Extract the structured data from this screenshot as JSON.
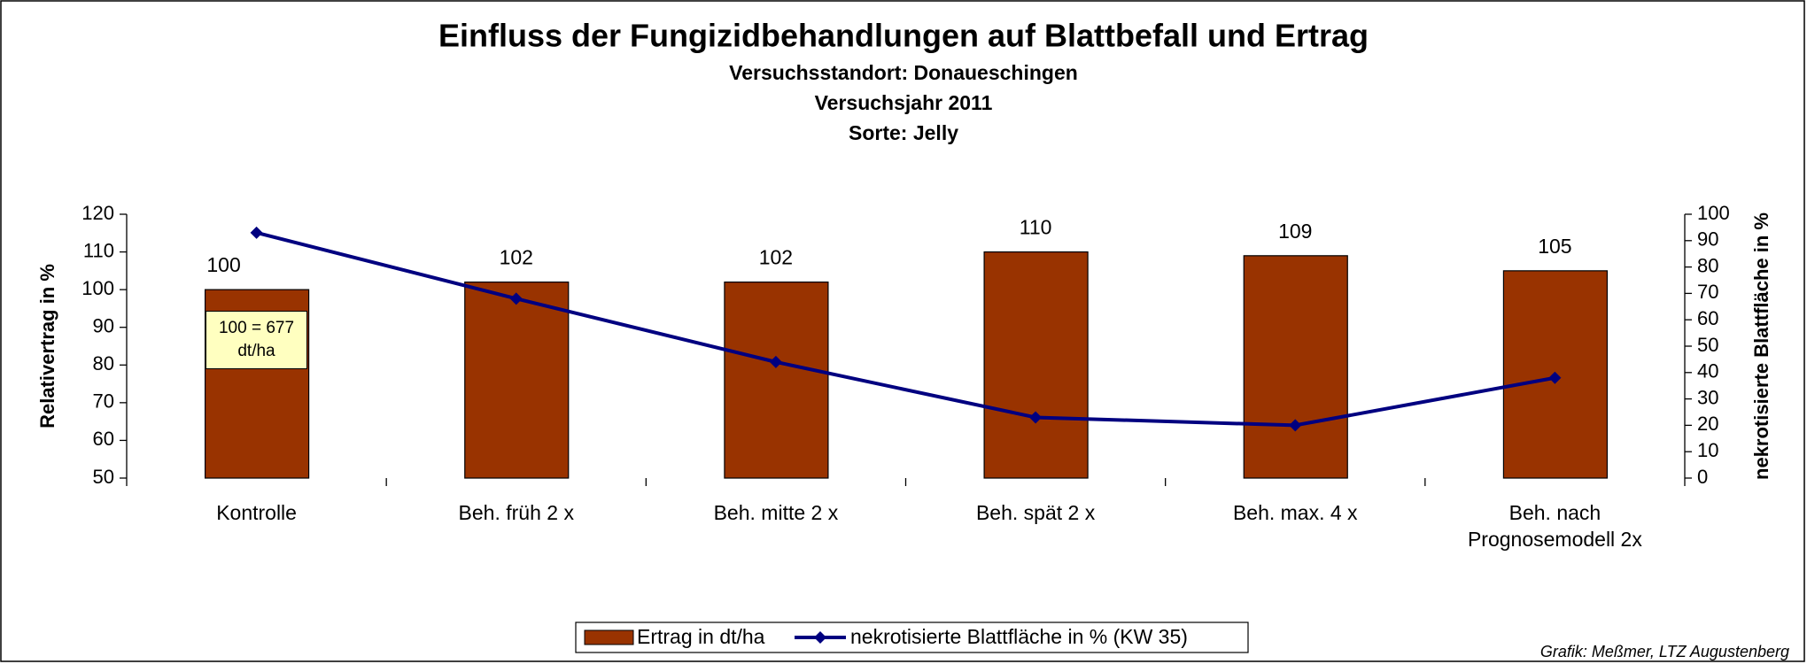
{
  "chart_data": {
    "type": "bar",
    "title": "Einfluss der Fungizidbehandlungen auf Blattbefall und Ertrag",
    "subtitle": [
      "Versuchsstandort: Donaueschingen",
      "Versuchsjahr 2011",
      "Sorte: Jelly"
    ],
    "categories": [
      "Kontrolle",
      "Beh. früh 2 x",
      "Beh. mitte 2 x",
      "Beh. spät  2 x",
      "Beh. max. 4 x",
      "Beh. nach Prognosemodell 2x"
    ],
    "series": [
      {
        "name": "Ertrag in dt/ha",
        "type": "bar",
        "color": "#993300",
        "values": [
          100,
          102,
          102,
          110,
          109,
          105
        ]
      },
      {
        "name": "nekrotisierte Blattfläche in % (KW 35)",
        "type": "line",
        "axis": "y2",
        "color": "#000080",
        "values": [
          93,
          68,
          44,
          23,
          20,
          38
        ]
      }
    ],
    "y_label": "Relativertrag in %",
    "y2_label": "nekrotisierte Blattfläche in %",
    "ylim": [
      50,
      120
    ],
    "yticks": [
      50,
      60,
      70,
      80,
      90,
      100,
      110,
      120
    ],
    "y2lim": [
      0,
      100
    ],
    "y2ticks": [
      0,
      10,
      20,
      30,
      40,
      50,
      60,
      70,
      80,
      90,
      100
    ],
    "annotation": "100 = 677 dt/ha",
    "credit": "Grafik: Meßmer, LTZ Augustenberg",
    "legend": "bottom"
  }
}
